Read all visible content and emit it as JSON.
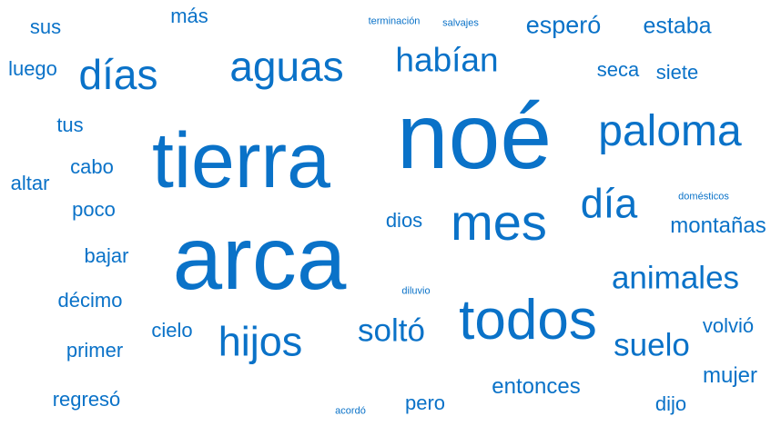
{
  "cloud": {
    "color": "#0a72c8",
    "words": [
      {
        "key": "noe",
        "text": "noé",
        "weight": 100
      },
      {
        "key": "arca",
        "text": "arca",
        "weight": 96
      },
      {
        "key": "tierra",
        "text": "tierra",
        "weight": 84
      },
      {
        "key": "todos",
        "text": "todos",
        "weight": 62
      },
      {
        "key": "mes",
        "text": "mes",
        "weight": 56
      },
      {
        "key": "paloma",
        "text": "paloma",
        "weight": 49
      },
      {
        "key": "aguas",
        "text": "aguas",
        "weight": 46
      },
      {
        "key": "dias",
        "text": "días",
        "weight": 45
      },
      {
        "key": "dia",
        "text": "día",
        "weight": 45
      },
      {
        "key": "hijos",
        "text": "hijos",
        "weight": 45
      },
      {
        "key": "habian",
        "text": "habían",
        "weight": 37
      },
      {
        "key": "animales",
        "text": "animales",
        "weight": 36
      },
      {
        "key": "solto",
        "text": "soltó",
        "weight": 35
      },
      {
        "key": "suelo",
        "text": "suelo",
        "weight": 35
      },
      {
        "key": "espero",
        "text": "esperó",
        "weight": 27
      },
      {
        "key": "estaba",
        "text": "estaba",
        "weight": 25
      },
      {
        "key": "entonces",
        "text": "entonces",
        "weight": 24
      },
      {
        "key": "montanas",
        "text": "montañas",
        "weight": 24
      },
      {
        "key": "mujer",
        "text": "mujer",
        "weight": 24
      },
      {
        "key": "mas",
        "text": "más",
        "weight": 23
      },
      {
        "key": "sus",
        "text": "sus",
        "weight": 23
      },
      {
        "key": "seca",
        "text": "seca",
        "weight": 23
      },
      {
        "key": "siete",
        "text": "siete",
        "weight": 23
      },
      {
        "key": "luego",
        "text": "luego",
        "weight": 23
      },
      {
        "key": "tus",
        "text": "tus",
        "weight": 23
      },
      {
        "key": "cabo",
        "text": "cabo",
        "weight": 23
      },
      {
        "key": "altar",
        "text": "altar",
        "weight": 23
      },
      {
        "key": "poco",
        "text": "poco",
        "weight": 23
      },
      {
        "key": "dios",
        "text": "dios",
        "weight": 23
      },
      {
        "key": "bajar",
        "text": "bajar",
        "weight": 23
      },
      {
        "key": "decimo",
        "text": "décimo",
        "weight": 23
      },
      {
        "key": "cielo",
        "text": "cielo",
        "weight": 23
      },
      {
        "key": "primer",
        "text": "primer",
        "weight": 23
      },
      {
        "key": "volvio",
        "text": "volvió",
        "weight": 23
      },
      {
        "key": "regreso",
        "text": "regresó",
        "weight": 23
      },
      {
        "key": "pero",
        "text": "pero",
        "weight": 23
      },
      {
        "key": "dijo",
        "text": "dijo",
        "weight": 23
      },
      {
        "key": "terminacion",
        "text": "terminación",
        "weight": 11
      },
      {
        "key": "salvajes",
        "text": "salvajes",
        "weight": 11
      },
      {
        "key": "domesticos",
        "text": "domésticos",
        "weight": 11
      },
      {
        "key": "diluvio",
        "text": "diluvio",
        "weight": 11
      },
      {
        "key": "acordo",
        "text": "acordó",
        "weight": 11
      }
    ]
  }
}
